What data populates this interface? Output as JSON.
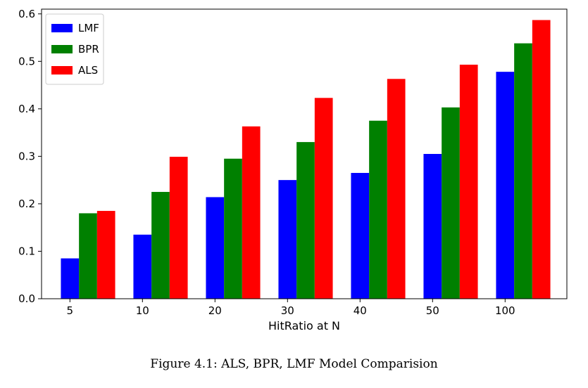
{
  "caption": "Figure 4.1: ALS, BPR, LMF Model Comparision",
  "chart_data": {
    "type": "bar",
    "categories": [
      "5",
      "10",
      "20",
      "30",
      "40",
      "50",
      "100"
    ],
    "series": [
      {
        "name": "LMF",
        "color": "#0000ff",
        "values": [
          0.085,
          0.135,
          0.214,
          0.25,
          0.265,
          0.305,
          0.478
        ]
      },
      {
        "name": "BPR",
        "color": "#008000",
        "values": [
          0.18,
          0.225,
          0.295,
          0.33,
          0.375,
          0.403,
          0.538
        ]
      },
      {
        "name": "ALS",
        "color": "#ff0000",
        "values": [
          0.185,
          0.299,
          0.363,
          0.423,
          0.463,
          0.493,
          0.587
        ]
      }
    ],
    "xlabel": "HitRatio at N",
    "ylabel": "",
    "ylim": [
      0,
      0.61
    ],
    "yticks": [
      "0.0",
      "0.1",
      "0.2",
      "0.3",
      "0.4",
      "0.5",
      "0.6"
    ],
    "legend_position": "top-left",
    "grid": false
  }
}
